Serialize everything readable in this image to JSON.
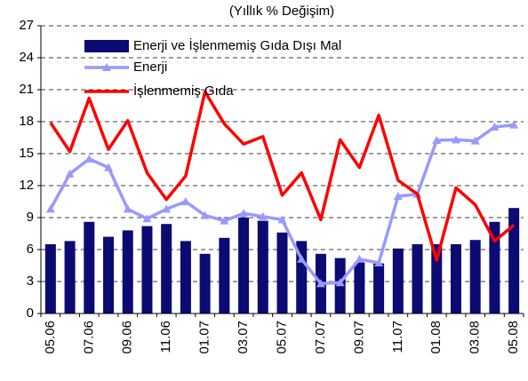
{
  "chart_data": {
    "type": "bar_line",
    "title": "(Yıllık % Değişim)",
    "categories": [
      "05.06",
      null,
      "07.06",
      null,
      "09.06",
      null,
      "11.06",
      null,
      "01.07",
      null,
      "03.07",
      null,
      "05.07",
      null,
      "07.07",
      null,
      "09.07",
      null,
      "11.07",
      null,
      "01.08",
      null,
      "03.08",
      null,
      "05.08"
    ],
    "series": [
      {
        "name": "Enerji ve İşlenmemiş Gıda Dışı Mal",
        "type": "bar",
        "color": "#0b0b73",
        "values": [
          6.5,
          6.8,
          8.6,
          7.2,
          7.8,
          8.2,
          8.4,
          6.8,
          5.6,
          7.1,
          9.0,
          8.7,
          7.6,
          6.8,
          5.6,
          5.2,
          4.8,
          4.7,
          6.1,
          6.5,
          6.5,
          6.5,
          6.9,
          8.6,
          9.9
        ]
      },
      {
        "name": "Enerji",
        "type": "line",
        "marker": "triangle",
        "color": "#9999ff",
        "values": [
          9.8,
          13.1,
          14.5,
          13.7,
          9.8,
          8.9,
          9.8,
          10.5,
          9.2,
          8.7,
          9.4,
          9.1,
          8.8,
          5.1,
          2.8,
          2.9,
          5.1,
          4.75,
          11.0,
          11.2,
          16.25,
          16.3,
          16.2,
          17.5,
          17.7
        ]
      },
      {
        "name": "İşlenmemiş  Gıda",
        "type": "line",
        "color": "#ff0000",
        "values": [
          17.9,
          15.2,
          20.2,
          15.4,
          18.1,
          13.2,
          10.7,
          12.9,
          20.8,
          17.8,
          15.9,
          16.6,
          11.1,
          13.2,
          8.8,
          16.3,
          13.7,
          18.6,
          12.5,
          11.2,
          5.0,
          11.8,
          10.2,
          6.8,
          8.3
        ]
      }
    ],
    "ylim": [
      0,
      27
    ],
    "yticks": [
      0,
      3,
      6,
      9,
      12,
      15,
      18,
      21,
      24,
      27
    ],
    "grid": true,
    "legend": "upper left"
  }
}
